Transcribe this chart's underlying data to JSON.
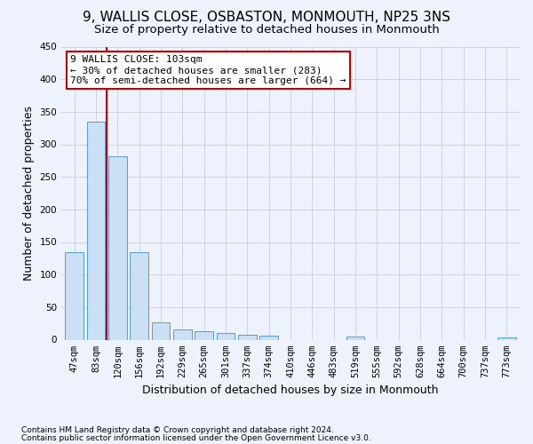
{
  "title": "9, WALLIS CLOSE, OSBASTON, MONMOUTH, NP25 3NS",
  "subtitle": "Size of property relative to detached houses in Monmouth",
  "xlabel": "Distribution of detached houses by size in Monmouth",
  "ylabel": "Number of detached properties",
  "bar_labels": [
    "47sqm",
    "83sqm",
    "120sqm",
    "156sqm",
    "192sqm",
    "229sqm",
    "265sqm",
    "301sqm",
    "337sqm",
    "374sqm",
    "410sqm",
    "446sqm",
    "483sqm",
    "519sqm",
    "555sqm",
    "592sqm",
    "628sqm",
    "664sqm",
    "700sqm",
    "737sqm",
    "773sqm"
  ],
  "bar_values": [
    135,
    335,
    282,
    135,
    27,
    16,
    13,
    10,
    7,
    6,
    0,
    0,
    0,
    5,
    0,
    0,
    0,
    0,
    0,
    0,
    4
  ],
  "bar_color": "#cce0f5",
  "bar_edge_color": "#5b9bd5",
  "vline_x": 1.5,
  "vline_color": "#cc0000",
  "annotation_line1": "9 WALLIS CLOSE: 103sqm",
  "annotation_line2": "← 30% of detached houses are smaller (283)",
  "annotation_line3": "70% of semi-detached houses are larger (664) →",
  "annotation_box_color": "#ffffff",
  "annotation_box_edge": "#cc0000",
  "ylim": [
    0,
    450
  ],
  "yticks": [
    0,
    50,
    100,
    150,
    200,
    250,
    300,
    350,
    400,
    450
  ],
  "footer_line1": "Contains HM Land Registry data © Crown copyright and database right 2024.",
  "footer_line2": "Contains public sector information licensed under the Open Government Licence v3.0.",
  "background_color": "#eef2fc",
  "grid_color": "#c8cfe0",
  "title_fontsize": 11,
  "subtitle_fontsize": 9.5,
  "tick_fontsize": 7.5,
  "ylabel_fontsize": 9,
  "xlabel_fontsize": 9,
  "footer_fontsize": 6.5,
  "annot_fontsize": 8
}
